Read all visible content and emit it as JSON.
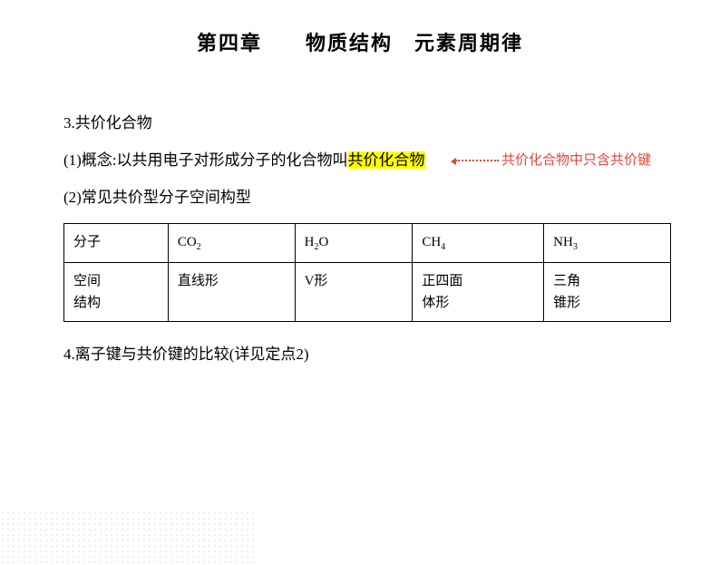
{
  "title": "第四章　　物质结构　元素周期律",
  "section3": {
    "heading": "3.共价化合物",
    "concept_prefix": "(1)概念:以共用电子对形成分子的化合物叫",
    "concept_highlight": "共价化合物",
    "annotation": "共价化合物中只含共价键",
    "subsection": "(2)常见共价型分子空间构型"
  },
  "table": {
    "row1_label": "分子",
    "row2_label": "空间\n结构",
    "molecules": [
      {
        "formula_base": "CO",
        "formula_sub": "2",
        "structure": "直线形"
      },
      {
        "formula_base": "H",
        "formula_sub": "2",
        "formula_suffix": "O",
        "structure": "V形"
      },
      {
        "formula_base": "CH",
        "formula_sub": "4",
        "structure": "正四面\n体形"
      },
      {
        "formula_base": "NH",
        "formula_sub": "3",
        "structure": "三角\n锥形"
      }
    ]
  },
  "section4": "4.离子键与共价键的比较(详见定点2)",
  "colors": {
    "highlight_bg": "#ffff00",
    "annotation_color": "#d94a3a",
    "text_color": "#000000",
    "border_color": "#000000",
    "dotted_bg_color": "#b8d4e8"
  }
}
